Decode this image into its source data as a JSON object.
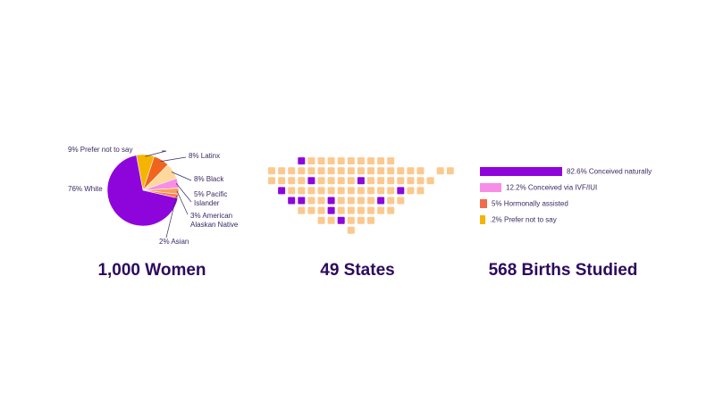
{
  "headings": {
    "women": "1,000 Women",
    "states": "49 States",
    "births": "568 Births Studied"
  },
  "chart_data": [
    {
      "type": "pie",
      "series": [
        {
          "label": "76% White",
          "value": 76,
          "color": "#8e05dc"
        },
        {
          "label": "9% Prefer not to say",
          "value": 9,
          "color": "#f5b400"
        },
        {
          "label": "8% Latinx",
          "value": 8,
          "color": "#f0641e"
        },
        {
          "label": "8% Black",
          "value": 8,
          "color": "#ffd89a"
        },
        {
          "label": "5% Pacific Islander",
          "value": 5,
          "color": "#f78ee6"
        },
        {
          "label": "3% American Alaskan Native",
          "value": 3,
          "color": "#f2a35a"
        },
        {
          "label": "2% Asian",
          "value": 2,
          "color": "#ff7a57"
        }
      ]
    },
    {
      "type": "heatmap",
      "colors": {
        "default": "#fbc98f",
        "highlight": "#8e05dc"
      },
      "rows": [
        [
          [
            3,
            1,
            0
          ]
        ],
        [
          [
            4,
            12,
            0
          ],
          [
            3,
            0,
            1
          ]
        ],
        [
          [
            0,
            15,
            0
          ],
          [
            17,
            18,
            0
          ]
        ],
        [
          [
            0,
            3,
            0
          ],
          [
            4,
            0,
            1
          ],
          [
            5,
            8,
            0
          ],
          [
            9,
            0,
            1
          ],
          [
            10,
            16,
            0
          ]
        ],
        [
          [
            1,
            0,
            1
          ],
          [
            2,
            12,
            0
          ],
          [
            13,
            0,
            1
          ],
          [
            14,
            15,
            0
          ]
        ],
        [
          [
            2,
            0,
            1
          ],
          [
            3,
            0,
            1
          ],
          [
            4,
            5,
            0
          ],
          [
            6,
            0,
            1
          ],
          [
            7,
            10,
            0
          ],
          [
            11,
            0,
            1
          ],
          [
            12,
            13,
            0
          ]
        ],
        [
          [
            3,
            5,
            0
          ],
          [
            6,
            0,
            1
          ],
          [
            7,
            12,
            0
          ]
        ],
        [
          [
            5,
            6,
            0
          ],
          [
            7,
            0,
            1
          ],
          [
            8,
            10,
            0
          ]
        ],
        [
          [
            8,
            0,
            0
          ]
        ]
      ]
    },
    {
      "type": "bar",
      "series": [
        {
          "label": "82.6% Conceived naturally",
          "value": 82.6,
          "color": "#8e05dc"
        },
        {
          "label": "12.2% Conceived via IVF/IUI",
          "value": 12.2,
          "color": "#f78ee6"
        },
        {
          "label": "5% Hormonally assisted",
          "value": 5,
          "color": "#f26b4a"
        },
        {
          "label": ".2% Prefer not to say",
          "value": 0.2,
          "color": "#f5b400"
        }
      ]
    }
  ]
}
